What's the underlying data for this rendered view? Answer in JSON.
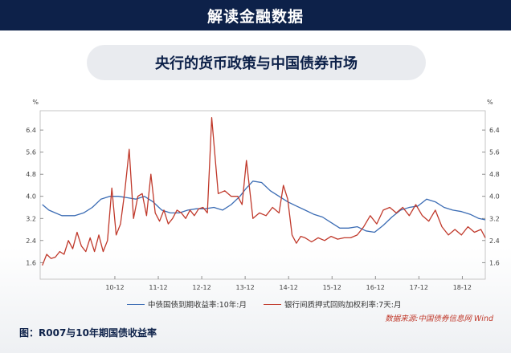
{
  "header": {
    "title": "解读金融数据"
  },
  "subtitle": "央行的货币政策与中国债券市场",
  "caption": "图：R007与10年期国债收益率",
  "source": "数据来源:中国债券信息网 Wind",
  "chart_data": {
    "type": "line",
    "x_tick_labels": [
      "10-12",
      "11-12",
      "12-12",
      "13-12",
      "14-12",
      "15-12",
      "16-12",
      "17-12",
      "18-12"
    ],
    "x_tick_positions": [
      2010.92,
      2011.92,
      2012.92,
      2013.92,
      2014.92,
      2015.92,
      2016.92,
      2017.92,
      2018.92
    ],
    "xlim": [
      2009.2,
      2019.45
    ],
    "ylim": [
      1.0,
      7.1
    ],
    "y_ticks": [
      1.6,
      2.4,
      3.2,
      4.0,
      4.8,
      5.6,
      6.4
    ],
    "y_tick_labels": [
      "1.6",
      "2.4",
      "3.2",
      "4.0",
      "4.8",
      "5.6",
      "6.4"
    ],
    "y_unit_left": "%",
    "y_unit_right": "%",
    "legend_position": "bottom",
    "grid": false,
    "series": [
      {
        "name": "中债国债到期收益率:10年:月",
        "color": "#3b6cb4",
        "x": [
          2009.25,
          2009.4,
          2009.55,
          2009.7,
          2009.85,
          2010.0,
          2010.2,
          2010.4,
          2010.6,
          2010.8,
          2011.0,
          2011.2,
          2011.4,
          2011.6,
          2011.8,
          2012.0,
          2012.2,
          2012.4,
          2012.6,
          2012.8,
          2013.0,
          2013.2,
          2013.4,
          2013.6,
          2013.8,
          2013.95,
          2014.1,
          2014.3,
          2014.5,
          2014.7,
          2014.9,
          2015.1,
          2015.3,
          2015.5,
          2015.7,
          2015.9,
          2016.1,
          2016.3,
          2016.5,
          2016.7,
          2016.9,
          2017.1,
          2017.3,
          2017.5,
          2017.7,
          2017.9,
          2018.1,
          2018.3,
          2018.5,
          2018.7,
          2018.9,
          2019.1,
          2019.3,
          2019.45
        ],
        "y": [
          3.7,
          3.5,
          3.4,
          3.3,
          3.3,
          3.3,
          3.4,
          3.6,
          3.9,
          4.0,
          4.0,
          3.95,
          3.9,
          4.0,
          3.8,
          3.5,
          3.4,
          3.4,
          3.5,
          3.55,
          3.55,
          3.6,
          3.5,
          3.7,
          4.0,
          4.3,
          4.55,
          4.5,
          4.2,
          4.0,
          3.8,
          3.65,
          3.5,
          3.35,
          3.25,
          3.05,
          2.85,
          2.85,
          2.9,
          2.75,
          2.7,
          2.95,
          3.25,
          3.5,
          3.6,
          3.65,
          3.9,
          3.8,
          3.6,
          3.5,
          3.45,
          3.35,
          3.2,
          3.15
        ]
      },
      {
        "name": "银行间质押式回购加权利率:7天:月",
        "color": "#c0392b",
        "x": [
          2009.25,
          2009.35,
          2009.45,
          2009.55,
          2009.65,
          2009.75,
          2009.85,
          2009.95,
          2010.05,
          2010.15,
          2010.25,
          2010.35,
          2010.45,
          2010.55,
          2010.65,
          2010.75,
          2010.85,
          2010.95,
          2011.05,
          2011.15,
          2011.25,
          2011.35,
          2011.45,
          2011.55,
          2011.65,
          2011.75,
          2011.85,
          2011.95,
          2012.05,
          2012.15,
          2012.25,
          2012.35,
          2012.45,
          2012.55,
          2012.65,
          2012.75,
          2012.85,
          2012.95,
          2013.05,
          2013.15,
          2013.3,
          2013.45,
          2013.6,
          2013.75,
          2013.85,
          2013.95,
          2014.1,
          2014.25,
          2014.4,
          2014.55,
          2014.7,
          2014.8,
          2014.9,
          2015.0,
          2015.1,
          2015.2,
          2015.3,
          2015.45,
          2015.6,
          2015.75,
          2015.9,
          2016.05,
          2016.2,
          2016.35,
          2016.5,
          2016.65,
          2016.8,
          2016.95,
          2017.1,
          2017.25,
          2017.4,
          2017.55,
          2017.7,
          2017.85,
          2018.0,
          2018.15,
          2018.3,
          2018.45,
          2018.6,
          2018.75,
          2018.9,
          2019.05,
          2019.2,
          2019.35,
          2019.45
        ],
        "y": [
          1.5,
          1.9,
          1.75,
          1.8,
          2.0,
          1.9,
          2.4,
          2.1,
          2.7,
          2.2,
          2.0,
          2.5,
          2.0,
          2.6,
          2.0,
          2.4,
          4.3,
          2.6,
          3.0,
          4.2,
          5.7,
          3.2,
          4.0,
          4.1,
          3.3,
          4.8,
          3.4,
          3.1,
          3.5,
          3.0,
          3.2,
          3.5,
          3.4,
          3.2,
          3.5,
          3.3,
          3.55,
          3.6,
          3.4,
          6.85,
          4.1,
          4.2,
          4.0,
          4.0,
          3.7,
          5.3,
          3.2,
          3.4,
          3.3,
          3.6,
          3.4,
          4.4,
          3.9,
          2.6,
          2.3,
          2.55,
          2.5,
          2.35,
          2.5,
          2.4,
          2.55,
          2.45,
          2.5,
          2.5,
          2.6,
          2.9,
          3.3,
          3.0,
          3.5,
          3.6,
          3.4,
          3.6,
          3.3,
          3.7,
          3.3,
          3.1,
          3.5,
          2.9,
          2.6,
          2.8,
          2.6,
          2.9,
          2.7,
          2.8,
          2.5
        ]
      }
    ]
  }
}
